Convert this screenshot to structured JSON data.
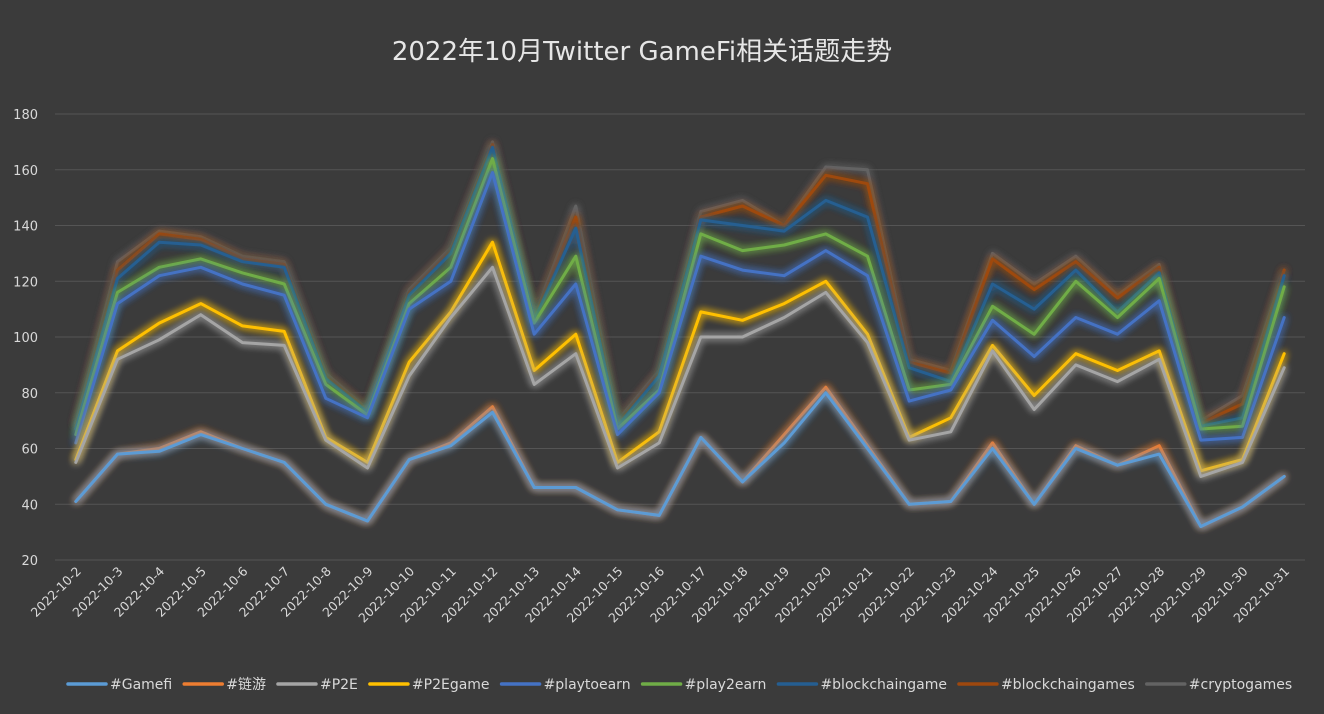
{
  "chart_data": {
    "type": "line",
    "title": "2022年10月Twitter GameFi相关话题走势",
    "xlabel": "",
    "ylabel": "",
    "ylim": [
      20,
      180
    ],
    "yticks": [
      20,
      40,
      60,
      80,
      100,
      120,
      140,
      160,
      180
    ],
    "grid": true,
    "legend_position": "bottom",
    "categories": [
      "2022-10-2",
      "2022-10-3",
      "2022-10-4",
      "2022-10-5",
      "2022-10-6",
      "2022-10-7",
      "2022-10-8",
      "2022-10-9",
      "2022-10-10",
      "2022-10-11",
      "2022-10-12",
      "2022-10-13",
      "2022-10-14",
      "2022-10-15",
      "2022-10-16",
      "2022-10-17",
      "2022-10-18",
      "2022-10-19",
      "2022-10-20",
      "2022-10-21",
      "2022-10-22",
      "2022-10-23",
      "2022-10-24",
      "2022-10-25",
      "2022-10-26",
      "2022-10-27",
      "2022-10-28",
      "2022-10-29",
      "2022-10-30",
      "2022-10-31"
    ],
    "series": [
      {
        "name": "#Gamefi",
        "color": "#5b9bd5",
        "values": [
          41,
          58,
          59,
          65,
          60,
          55,
          40,
          34,
          56,
          61,
          73,
          46,
          46,
          38,
          36,
          64,
          48,
          62,
          80,
          60,
          40,
          41,
          60,
          40,
          60,
          54,
          58,
          32,
          39,
          50
        ]
      },
      {
        "name": "#链游",
        "color": "#ed7d31",
        "values": [
          41,
          58,
          60,
          66,
          60,
          55,
          40,
          34,
          56,
          62,
          75,
          46,
          46,
          38,
          36,
          64,
          48,
          65,
          82,
          61,
          40,
          41,
          62,
          40,
          61,
          54,
          61,
          32,
          39,
          50
        ]
      },
      {
        "name": "#P2E",
        "color": "#a5a5a5",
        "values": [
          55,
          92,
          99,
          108,
          98,
          97,
          63,
          53,
          86,
          107,
          125,
          83,
          94,
          53,
          62,
          100,
          100,
          107,
          116,
          98,
          63,
          66,
          95,
          74,
          90,
          84,
          92,
          50,
          55,
          89
        ]
      },
      {
        "name": "#P2Egame",
        "color": "#ffc000",
        "values": [
          56,
          95,
          105,
          112,
          104,
          102,
          64,
          55,
          91,
          109,
          134,
          88,
          101,
          55,
          66,
          109,
          106,
          112,
          120,
          101,
          64,
          71,
          97,
          79,
          94,
          88,
          95,
          52,
          56,
          94
        ]
      },
      {
        "name": "#playtoearn",
        "color": "#4472c4",
        "values": [
          62,
          112,
          122,
          125,
          119,
          115,
          78,
          71,
          110,
          120,
          159,
          101,
          119,
          65,
          80,
          129,
          124,
          122,
          131,
          122,
          77,
          81,
          106,
          93,
          107,
          101,
          113,
          63,
          64,
          107
        ]
      },
      {
        "name": "#play2earn",
        "color": "#70ad47",
        "values": [
          65,
          116,
          125,
          128,
          123,
          119,
          83,
          72,
          112,
          125,
          164,
          105,
          129,
          67,
          81,
          137,
          131,
          133,
          137,
          129,
          81,
          83,
          111,
          101,
          120,
          107,
          121,
          67,
          68,
          118
        ]
      },
      {
        "name": "#blockchaingame",
        "color": "#255e91",
        "values": [
          67,
          121,
          134,
          133,
          127,
          125,
          85,
          73,
          115,
          130,
          168,
          106,
          139,
          68,
          86,
          142,
          140,
          138,
          149,
          143,
          89,
          84,
          119,
          110,
          124,
          109,
          123,
          68,
          71,
          122
        ]
      },
      {
        "name": "#blockchaingames",
        "color": "#9e480e",
        "values": [
          68,
          124,
          137,
          135,
          128,
          126,
          86,
          74,
          116,
          131,
          169,
          107,
          143,
          69,
          87,
          143,
          147,
          140,
          158,
          155,
          91,
          87,
          128,
          117,
          127,
          114,
          125,
          69,
          76,
          124
        ]
      },
      {
        "name": "#cryptogames",
        "color": "#636363",
        "values": [
          69,
          127,
          138,
          136,
          129,
          127,
          87,
          74,
          117,
          132,
          170,
          107,
          147,
          70,
          88,
          145,
          149,
          140,
          161,
          160,
          92,
          88,
          130,
          119,
          129,
          115,
          126,
          70,
          79,
          124
        ]
      }
    ]
  }
}
